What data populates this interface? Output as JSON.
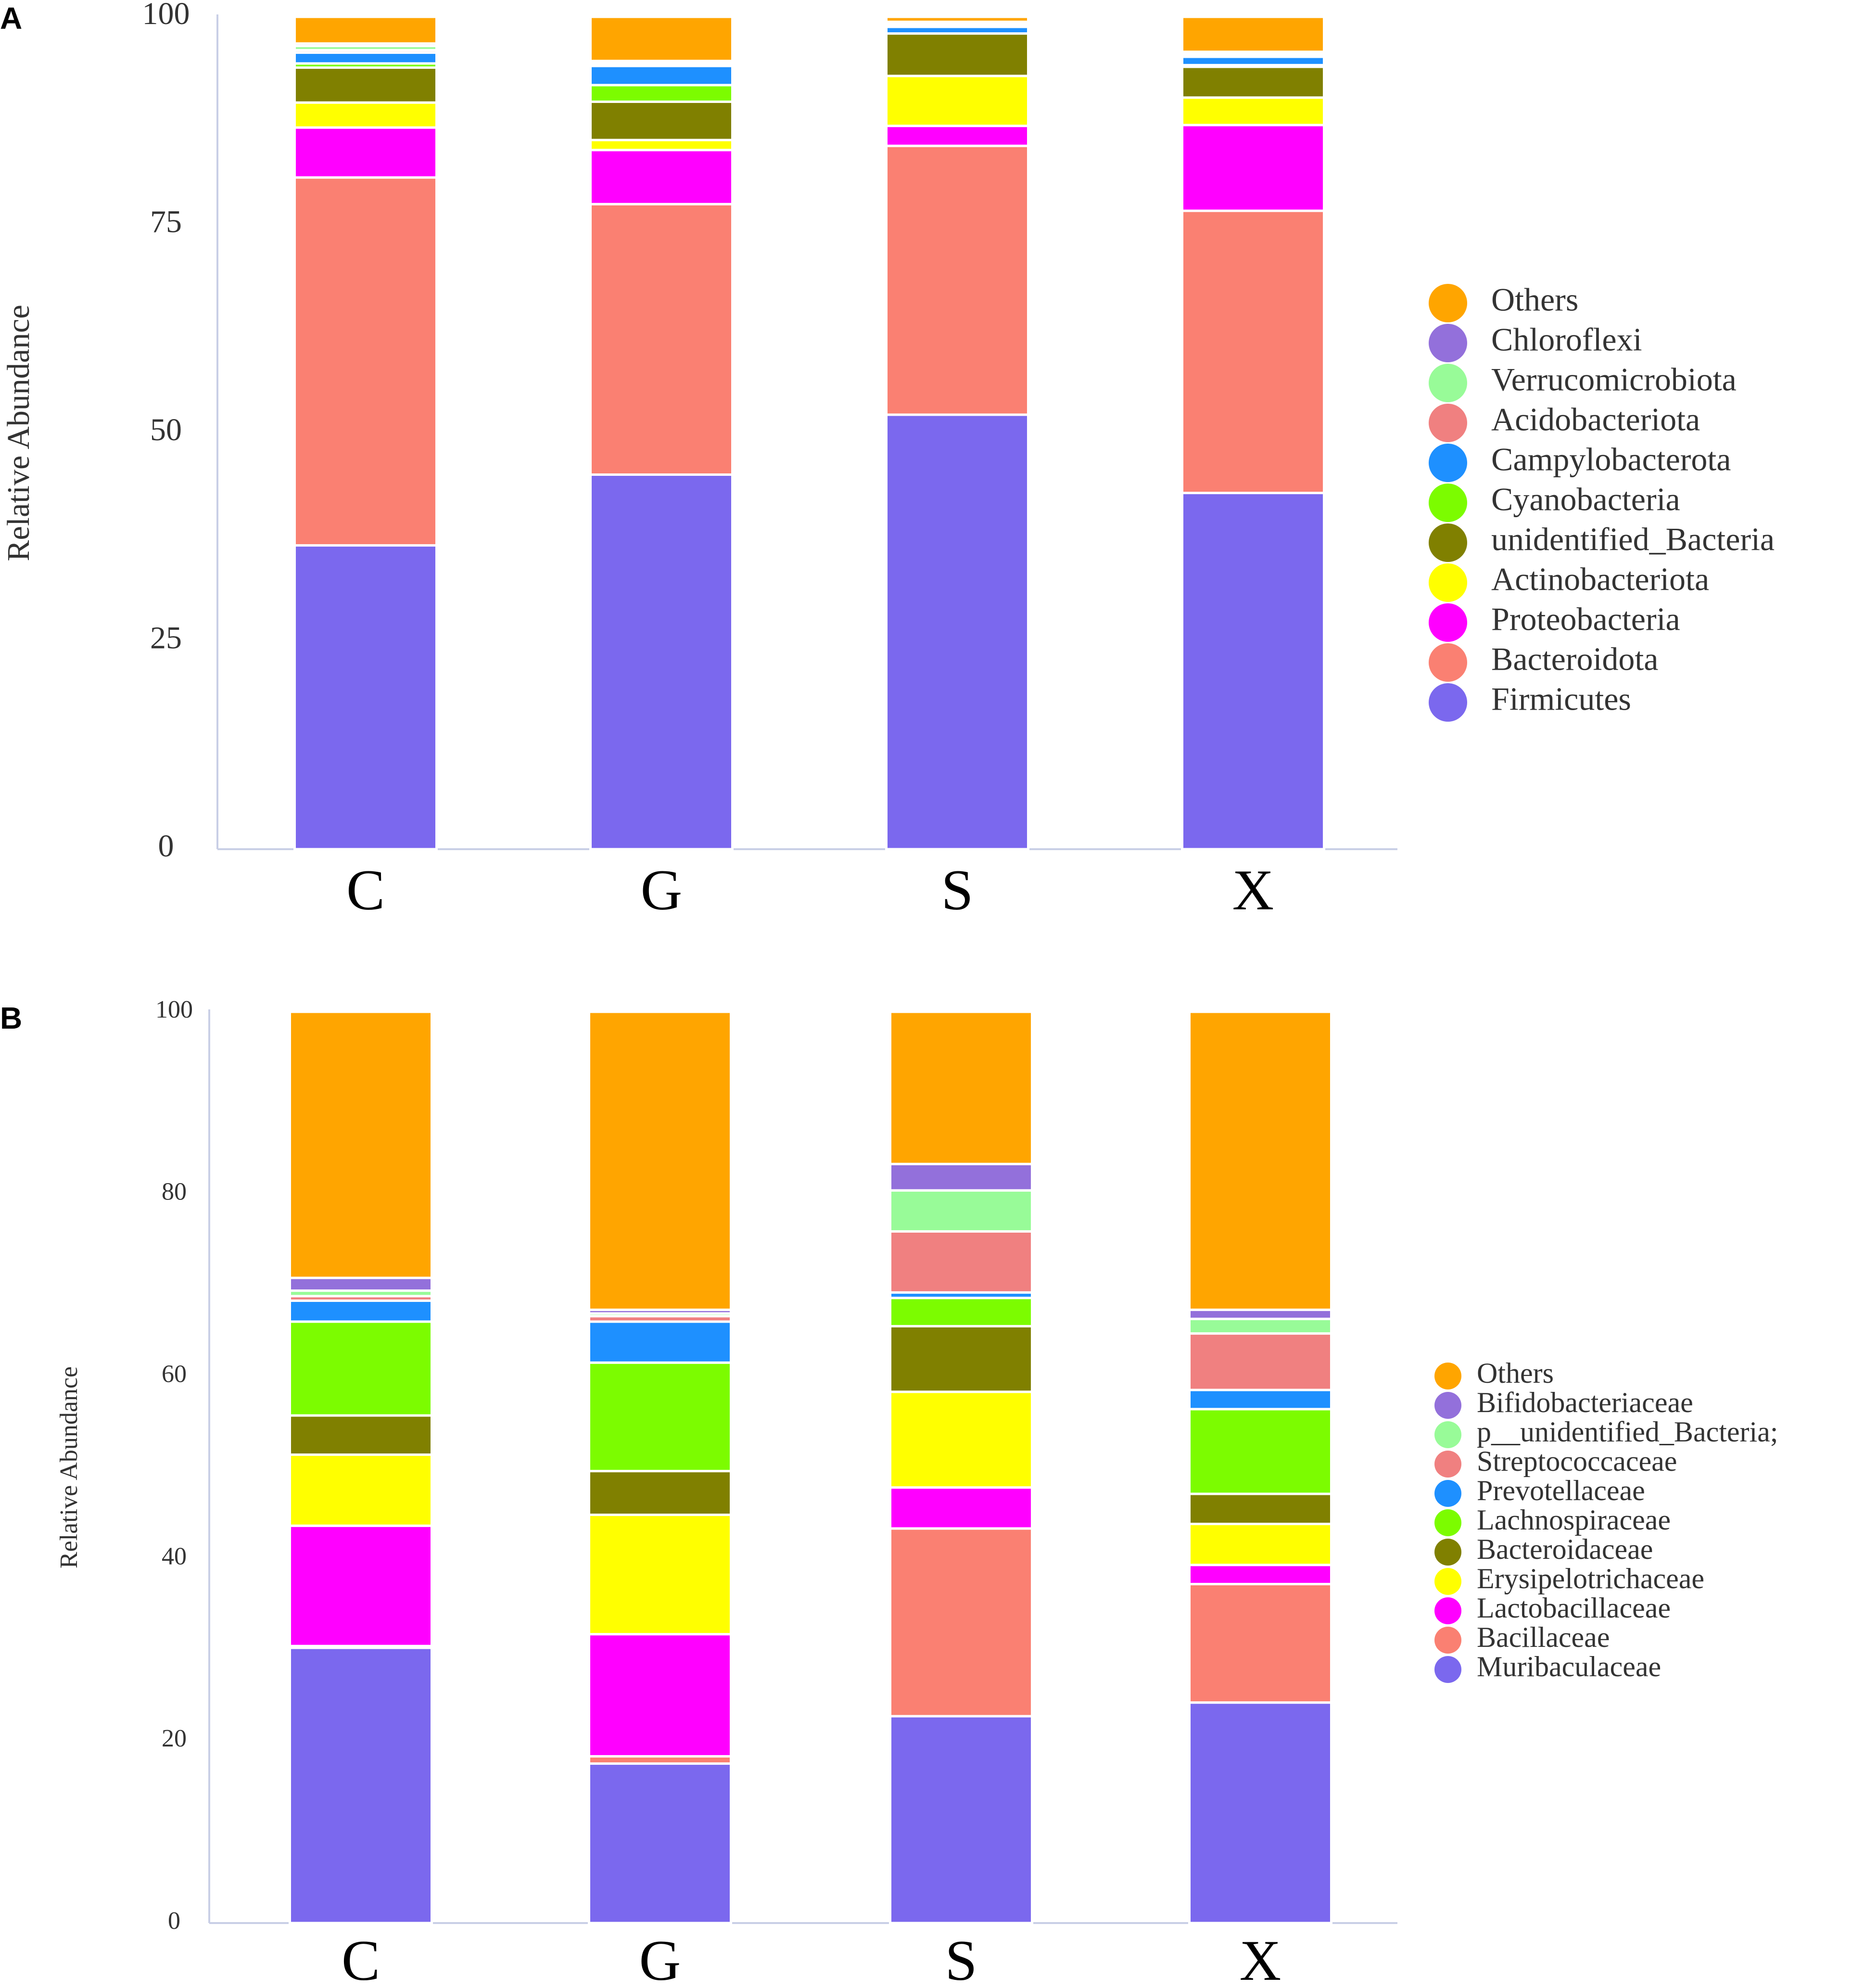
{
  "chart_data": [
    {
      "panel": "A",
      "type": "bar",
      "stacked": true,
      "ylabel": "Relative Abundance",
      "xlabel": "",
      "ylim": [
        0,
        100
      ],
      "yticks": [
        0,
        25,
        50,
        75,
        100
      ],
      "categories": [
        "C",
        "G",
        "S",
        "X"
      ],
      "legend_position": "right",
      "series": [
        {
          "name": "Firmicutes",
          "color": "#7B68EE",
          "values": [
            36.5,
            45.0,
            52.2,
            42.8
          ]
        },
        {
          "name": "Bacteroidota",
          "color": "#FA8072",
          "values": [
            44.2,
            32.5,
            32.3,
            33.9
          ]
        },
        {
          "name": "Proteobacteria",
          "color": "#FF00FF",
          "values": [
            6.0,
            6.5,
            2.4,
            10.3
          ]
        },
        {
          "name": "Actinobacteriota",
          "color": "#FFFF00",
          "values": [
            3.0,
            1.2,
            6.0,
            3.3
          ]
        },
        {
          "name": "unidentified_Bacteria",
          "color": "#808000",
          "values": [
            4.2,
            4.6,
            5.1,
            3.7
          ]
        },
        {
          "name": "Cyanobacteria",
          "color": "#7CFC00",
          "values": [
            0.5,
            2.0,
            0.0,
            0.2
          ]
        },
        {
          "name": "Campylobacterota",
          "color": "#1E90FF",
          "values": [
            1.3,
            2.3,
            0.8,
            1.0
          ]
        },
        {
          "name": "Acidobacteriota",
          "color": "#F08080",
          "values": [
            0.3,
            0.2,
            0.2,
            0.2
          ]
        },
        {
          "name": "Verrucomicrobiota",
          "color": "#98FB98",
          "values": [
            0.5,
            0.2,
            0.2,
            0.2
          ]
        },
        {
          "name": "Chloroflexi",
          "color": "#9370DB",
          "values": [
            0.3,
            0.2,
            0.2,
            0.2
          ]
        },
        {
          "name": "Others",
          "color": "#FFA500",
          "values": [
            3.2,
            5.3,
            0.6,
            4.2
          ]
        }
      ]
    },
    {
      "panel": "B",
      "type": "bar",
      "stacked": true,
      "ylabel": "Relative Abundance",
      "xlabel": "",
      "ylim": [
        0,
        100
      ],
      "yticks": [
        0,
        20,
        40,
        60,
        80,
        100
      ],
      "categories": [
        "C",
        "G",
        "S",
        "X"
      ],
      "legend_position": "right",
      "series": [
        {
          "name": "Muribaculaceae",
          "color": "#7B68EE",
          "values": [
            30.2,
            17.5,
            22.7,
            24.2
          ]
        },
        {
          "name": "Bacillaceae",
          "color": "#FA8072",
          "values": [
            0.2,
            0.8,
            20.6,
            13.0
          ]
        },
        {
          "name": "Lactobacillaceae",
          "color": "#FF00FF",
          "values": [
            13.2,
            13.4,
            4.5,
            2.1
          ]
        },
        {
          "name": "Erysipelotrichaceae",
          "color": "#FFFF00",
          "values": [
            7.8,
            13.1,
            10.5,
            4.5
          ]
        },
        {
          "name": "Bacteroidaceae",
          "color": "#808000",
          "values": [
            4.3,
            4.8,
            7.2,
            3.3
          ]
        },
        {
          "name": "Lachnospiraceae",
          "color": "#7CFC00",
          "values": [
            10.3,
            11.9,
            3.1,
            9.3
          ]
        },
        {
          "name": "Prevotellaceae",
          "color": "#1E90FF",
          "values": [
            2.3,
            4.5,
            0.6,
            2.1
          ]
        },
        {
          "name": "Streptococcaceae",
          "color": "#F08080",
          "values": [
            0.5,
            0.6,
            6.7,
            6.2
          ]
        },
        {
          "name": "p__unidentified_Bacteria;",
          "color": "#98FB98",
          "values": [
            0.6,
            0.3,
            4.5,
            1.6
          ]
        },
        {
          "name": "Bifidobacteriaceae",
          "color": "#9370DB",
          "values": [
            1.4,
            0.4,
            2.9,
            1.0
          ]
        },
        {
          "name": "Others",
          "color": "#FFA500",
          "values": [
            29.2,
            32.7,
            16.7,
            32.7
          ]
        }
      ]
    }
  ]
}
